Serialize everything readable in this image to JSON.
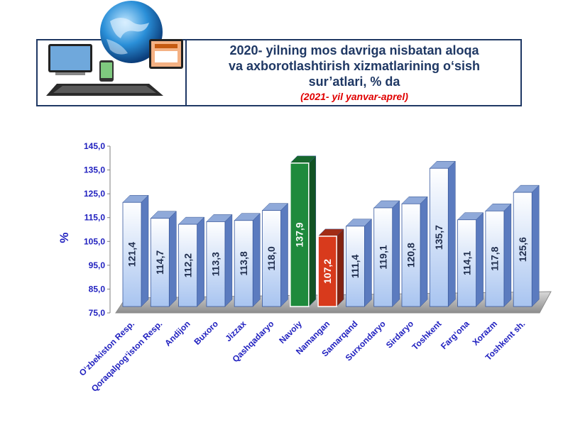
{
  "header": {
    "title_lines": [
      "2020- yilning mos davriga nisbatan aloqa",
      "va axborotlashtirish xizmatlarining o‘sish",
      "sur’atlari, % da"
    ],
    "subtitle": "(2021- yil yanvar-aprel)"
  },
  "chart_data": {
    "type": "bar",
    "categories": [
      "O‘zbekiston Resp.",
      "Qoraqalpog‘iston Resp.",
      "Andijon",
      "Buxoro",
      "Jizzax",
      "Qashqadaryo",
      "Navoiy",
      "Namangan",
      "Samarqand",
      "Surxondaryo",
      "Sirdaryo",
      "Toshkent",
      "Farg‘ona",
      "Xorazm",
      "Toshkent sh."
    ],
    "values": [
      121.4,
      114.7,
      112.2,
      113.3,
      113.8,
      118.0,
      137.9,
      107.2,
      111.4,
      119.1,
      120.8,
      135.7,
      114.1,
      117.8,
      125.6
    ],
    "value_labels": [
      "121,4",
      "114,7",
      "112,2",
      "113,3",
      "113,8",
      "118,0",
      "137,9",
      "107,2",
      "111,4",
      "119,1",
      "120,8",
      "135,7",
      "114,1",
      "117,8",
      "125,6"
    ],
    "bar_colors": [
      "#bcd3f5",
      "#bcd3f5",
      "#bcd3f5",
      "#bcd3f5",
      "#bcd3f5",
      "#bcd3f5",
      "#1e8a3c",
      "#d83a1c",
      "#bcd3f5",
      "#bcd3f5",
      "#bcd3f5",
      "#bcd3f5",
      "#bcd3f5",
      "#bcd3f5",
      "#bcd3f5"
    ],
    "ylabel": "%",
    "ylim": [
      75,
      145
    ],
    "yticks": [
      "75,0",
      "85,0",
      "95,0",
      "105,0",
      "115,0",
      "125,0",
      "135,0",
      "145,0"
    ],
    "grid": false,
    "accent_color": "#1f1fbf"
  }
}
